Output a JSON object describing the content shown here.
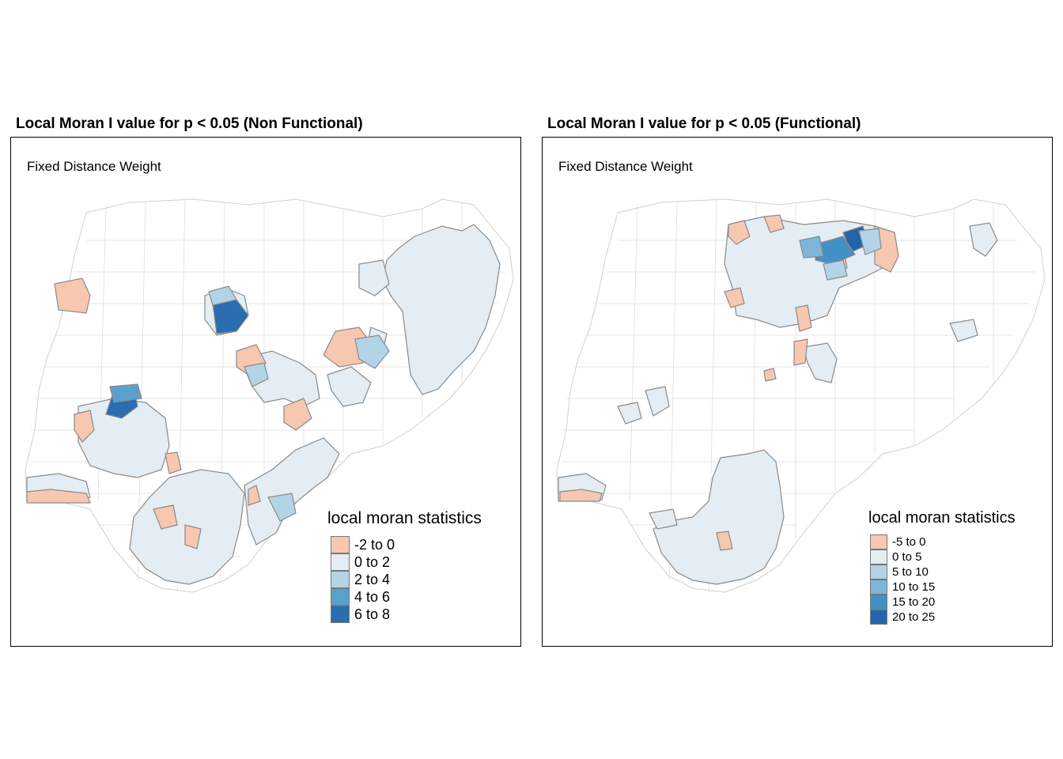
{
  "maps": [
    {
      "title": "Local Moran I value for p < 0.05 (Non Functional)",
      "subtitle": "Fixed Distance Weight",
      "legend": {
        "title": "local moran statistics",
        "items": [
          {
            "label": "-2 to 0",
            "color": "#f7c7b0"
          },
          {
            "label": "0 to 2",
            "color": "#e3edf3"
          },
          {
            "label": "2 to 4",
            "color": "#b3d3e7"
          },
          {
            "label": "4 to 6",
            "color": "#5aa0cc"
          },
          {
            "label": "6 to 8",
            "color": "#2a6db1"
          }
        ]
      }
    },
    {
      "title": "Local Moran I value for p < 0.05 (Functional)",
      "subtitle": "Fixed Distance Weight",
      "legend": {
        "title": "local moran statistics",
        "items": [
          {
            "label": "-5 to 0",
            "color": "#f7c7b0"
          },
          {
            "label": "0 to 5",
            "color": "#e3edf3"
          },
          {
            "label": "5 to 10",
            "color": "#b3d3e7"
          },
          {
            "label": "10 to 15",
            "color": "#7eb5d8"
          },
          {
            "label": "15 to 20",
            "color": "#4191c6"
          },
          {
            "label": "20 to 25",
            "color": "#2166ac"
          }
        ]
      }
    }
  ]
}
